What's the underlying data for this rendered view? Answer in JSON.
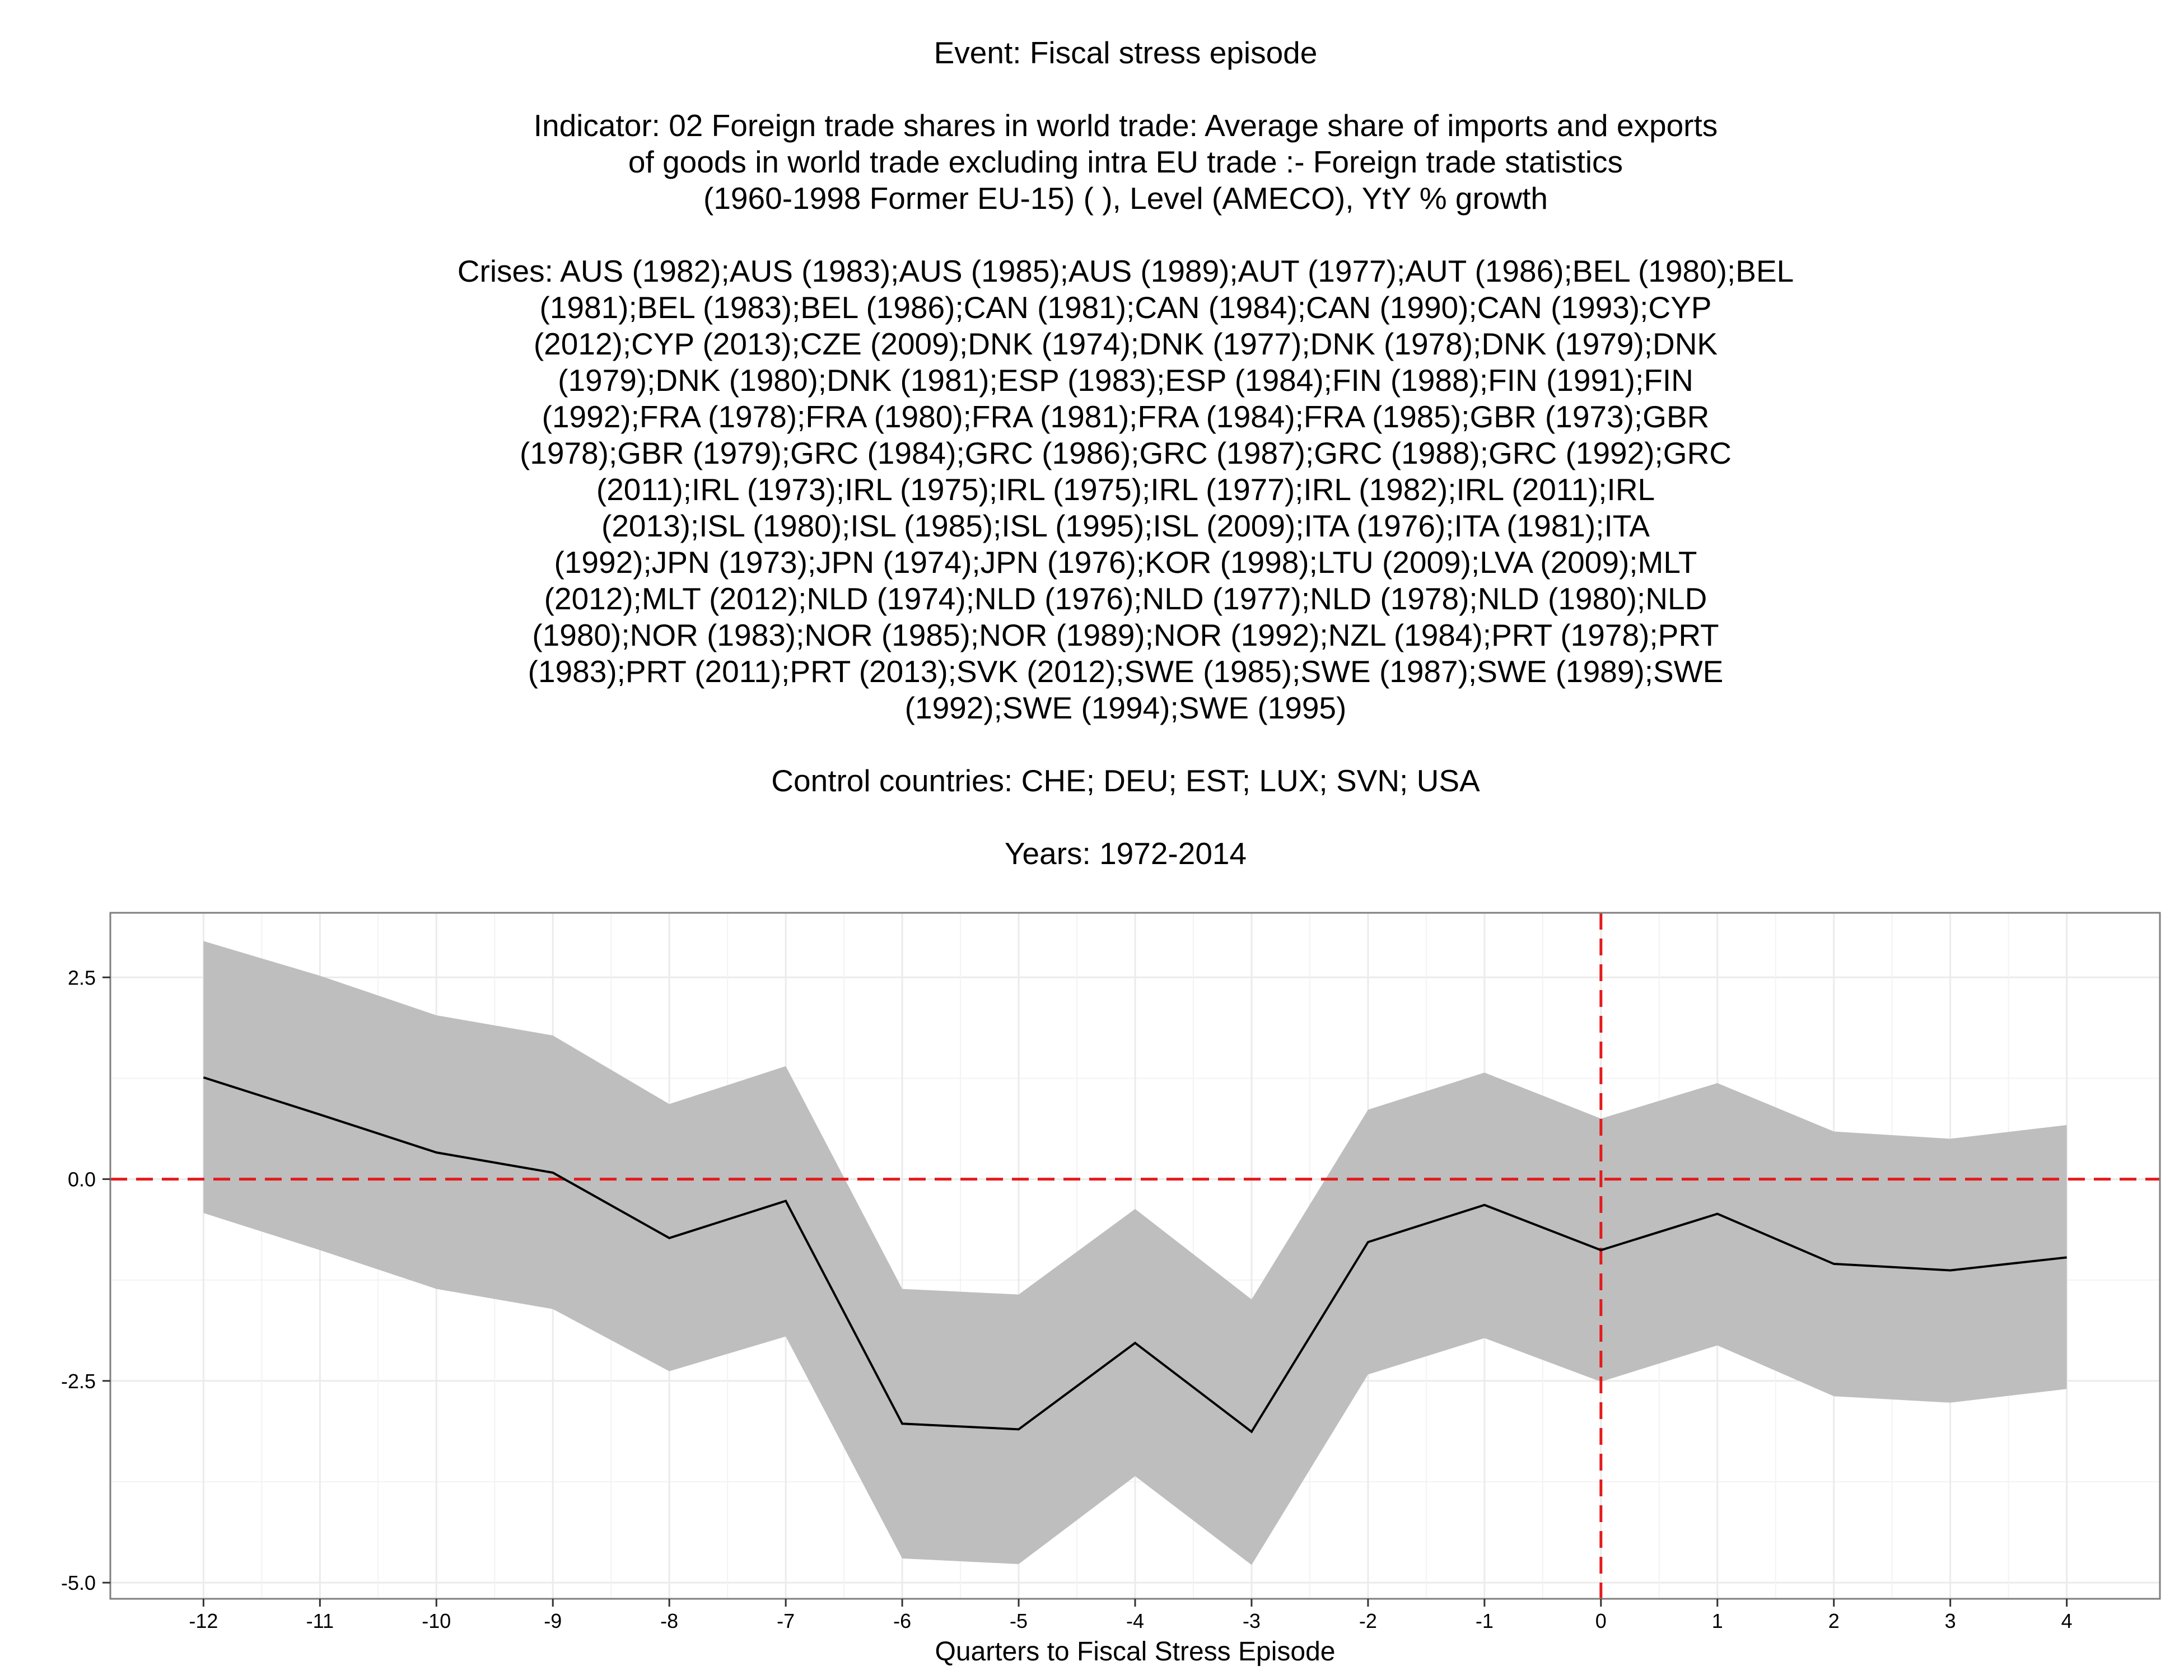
{
  "title_lines": [
    "Event: Fiscal stress episode",
    "",
    "Indicator: 02 Foreign trade shares in world trade: Average share of imports and exports",
    "of goods in world trade excluding intra EU trade :- Foreign trade statistics",
    "(1960-1998 Former EU-15) ( ), Level (AMECO), YtY % growth",
    "",
    "Crises: AUS (1982);AUS (1983);AUS (1985);AUS (1989);AUT (1977);AUT (1986);BEL (1980);BEL",
    "(1981);BEL (1983);BEL (1986);CAN (1981);CAN (1984);CAN (1990);CAN (1993);CYP",
    "(2012);CYP (2013);CZE (2009);DNK (1974);DNK (1977);DNK (1978);DNK (1979);DNK",
    "(1979);DNK (1980);DNK (1981);ESP (1983);ESP (1984);FIN (1988);FIN (1991);FIN",
    "(1992);FRA (1978);FRA (1980);FRA (1981);FRA (1984);FRA (1985);GBR (1973);GBR",
    "(1978);GBR (1979);GRC (1984);GRC (1986);GRC (1987);GRC (1988);GRC (1992);GRC",
    "(2011);IRL (1973);IRL (1975);IRL (1975);IRL (1977);IRL (1982);IRL (2011);IRL",
    "(2013);ISL (1980);ISL (1985);ISL (1995);ISL (2009);ITA (1976);ITA (1981);ITA",
    "(1992);JPN (1973);JPN (1974);JPN (1976);KOR (1998);LTU (2009);LVA (2009);MLT",
    "(2012);MLT (2012);NLD (1974);NLD (1976);NLD (1977);NLD (1978);NLD (1980);NLD",
    "(1980);NOR (1983);NOR (1985);NOR (1989);NOR (1992);NZL (1984);PRT (1978);PRT",
    "(1983);PRT (2011);PRT (2013);SVK (2012);SWE (1985);SWE (1987);SWE (1989);SWE",
    "(1992);SWE (1994);SWE (1995)",
    "",
    "Control countries: CHE; DEU; EST; LUX; SVN; USA",
    "",
    "Years: 1972-2014"
  ],
  "chart_data": {
    "type": "line",
    "xlabel": "Quarters to Fiscal Stress Episode",
    "ylabel": "",
    "x": [
      -12,
      -11,
      -10,
      -9,
      -8,
      -7,
      -6,
      -5,
      -4,
      -3,
      -2,
      -1,
      0,
      1,
      2,
      3,
      4
    ],
    "series": [
      {
        "values": [
          1.26,
          0.8,
          0.33,
          0.08,
          -0.73,
          -0.27,
          -3.03,
          -3.1,
          -2.03,
          -3.13,
          -0.78,
          -0.32,
          -0.88,
          -0.43,
          -1.05,
          -1.13,
          -0.97
        ]
      }
    ],
    "band_upper": [
      2.95,
      2.52,
      2.03,
      1.78,
      0.93,
      1.4,
      -1.36,
      -1.43,
      -0.37,
      -1.49,
      0.86,
      1.32,
      0.75,
      1.19,
      0.59,
      0.5,
      0.67
    ],
    "band_lower": [
      -0.42,
      -0.88,
      -1.36,
      -1.61,
      -2.38,
      -1.95,
      -4.7,
      -4.77,
      -3.68,
      -4.78,
      -2.42,
      -1.97,
      -2.51,
      -2.06,
      -2.69,
      -2.77,
      -2.6
    ],
    "xlim": [
      -12.8,
      4.8
    ],
    "ylim": [
      -5.2,
      3.3
    ],
    "yticks": [
      2.5,
      0.0,
      -2.5,
      -5.0
    ],
    "ytick_labels": [
      "2.5",
      "0.0",
      "-2.5",
      "-5.0"
    ],
    "xticks": [
      -12,
      -11,
      -10,
      -9,
      -8,
      -7,
      -6,
      -5,
      -4,
      -3,
      -2,
      -1,
      0,
      1,
      2,
      3,
      4
    ],
    "xtick_labels": [
      "-12",
      "-11",
      "-10",
      "-9",
      "-8",
      "-7",
      "-6",
      "-5",
      "-4",
      "-3",
      "-2",
      "-1",
      "0",
      "1",
      "2",
      "3",
      "4"
    ],
    "reference_lines": {
      "hline": 0,
      "vline": 0
    },
    "grid": true,
    "colors": {
      "line": "#000000",
      "band": "#bebebe",
      "reference": "#e41a1c",
      "grid": "#ebebeb",
      "border": "#7f7f7f"
    }
  }
}
